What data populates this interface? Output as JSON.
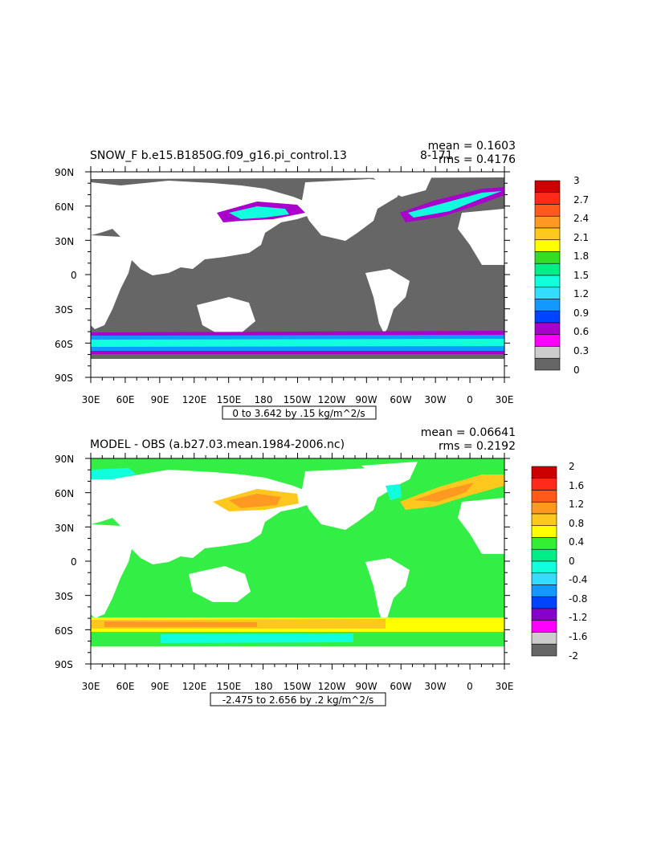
{
  "chart_data": [
    {
      "type": "heatmap",
      "title": "SNOW_F b.e15.B1850G.f09_g16.pi_control.13  ",
      "title_suffix": "8-171",
      "mean_label": "mean = 0.1603",
      "rms_label": "rms = 0.4176",
      "x_tick_labels": [
        "30E",
        "60E",
        "90E",
        "120E",
        "150E",
        "180",
        "150W",
        "120W",
        "90W",
        "60W",
        "30W",
        "0",
        "30E"
      ],
      "y_tick_labels": [
        "90N",
        "60N",
        "30N",
        "0",
        "30S",
        "60S",
        "90S"
      ],
      "range_label": "0 to 3.642 by .15 kg/m^2/s",
      "colorbar_labels": [
        "3",
        "2.7",
        "2.4",
        "2.1",
        "1.8",
        "1.5",
        "1.2",
        "0.9",
        "0.6",
        "0.3",
        "0"
      ],
      "colorbar_colors": [
        "#cc0000",
        "#ff2a1a",
        "#ff5a1a",
        "#ff9922",
        "#ffc81e",
        "#ffff00",
        "#33dd22",
        "#00ee88",
        "#11ffdd",
        "#33ddff",
        "#1199ff",
        "#0044ff",
        "#aa00cc",
        "#ff00ff",
        "#cccccc",
        "#666666"
      ],
      "land_color": "#ffffff",
      "ocean_color": "#666666"
    },
    {
      "type": "heatmap",
      "title": "MODEL - OBS (a.b27.03.mean.1984-2006.nc)",
      "mean_label": "mean = 0.06641",
      "rms_label": "rms = 0.2192",
      "x_tick_labels": [
        "30E",
        "60E",
        "90E",
        "120E",
        "150E",
        "180",
        "150W",
        "120W",
        "90W",
        "60W",
        "30W",
        "0",
        "30E"
      ],
      "y_tick_labels": [
        "90N",
        "60N",
        "30N",
        "0",
        "30S",
        "60S",
        "90S"
      ],
      "range_label": "-2.475 to 2.656 by .2 kg/m^2/s",
      "colorbar_labels": [
        "2",
        "1.6",
        "1.2",
        "0.8",
        "0.4",
        "0",
        "-0.4",
        "-0.8",
        "-1.2",
        "-1.6",
        "-2"
      ],
      "colorbar_colors": [
        "#cc0000",
        "#ff2a1a",
        "#ff5a1a",
        "#ff9922",
        "#ffc81e",
        "#ffff00",
        "#33ee33",
        "#00ee88",
        "#11ffdd",
        "#33ddff",
        "#1199ff",
        "#0044ff",
        "#8800cc",
        "#ff00ff",
        "#cccccc",
        "#666666"
      ],
      "land_color": "#ffffff",
      "ocean_color": "#33ee44"
    }
  ]
}
